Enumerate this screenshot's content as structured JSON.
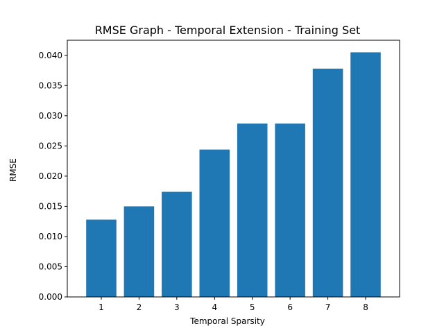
{
  "chart_data": {
    "type": "bar",
    "title": "RMSE Graph - Temporal Extension - Training Set",
    "xlabel": "Temporal Sparsity",
    "ylabel": "RMSE",
    "categories": [
      "1",
      "2",
      "3",
      "4",
      "5",
      "6",
      "7",
      "8"
    ],
    "values": [
      0.0128,
      0.015,
      0.0174,
      0.0244,
      0.0287,
      0.0287,
      0.0378,
      0.0405
    ],
    "ylim": [
      0,
      0.0425
    ],
    "yticks": [
      "0.000",
      "0.005",
      "0.010",
      "0.015",
      "0.020",
      "0.025",
      "0.030",
      "0.035",
      "0.040"
    ],
    "grid": false,
    "bar_color": "#1f77b4"
  }
}
